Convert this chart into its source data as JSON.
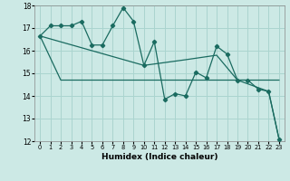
{
  "xlabel": "Humidex (Indice chaleur)",
  "background_color": "#cce9e5",
  "grid_color": "#aad4cf",
  "line_color": "#1a6b60",
  "ylim": [
    12,
    18
  ],
  "xlim": [
    -0.5,
    23.5
  ],
  "yticks": [
    12,
    13,
    14,
    15,
    16,
    17,
    18
  ],
  "xticks": [
    0,
    1,
    2,
    3,
    4,
    5,
    6,
    7,
    8,
    9,
    10,
    11,
    12,
    13,
    14,
    15,
    16,
    17,
    18,
    19,
    20,
    21,
    22,
    23
  ],
  "line1_x": [
    0,
    1,
    2,
    3,
    4,
    5,
    6,
    7,
    8,
    9,
    10,
    11,
    12,
    13,
    14,
    15,
    16,
    17,
    18,
    19,
    20,
    21,
    22,
    23
  ],
  "line1_y": [
    16.65,
    17.1,
    17.1,
    17.1,
    17.3,
    16.25,
    16.25,
    17.1,
    17.9,
    17.3,
    15.35,
    16.4,
    13.85,
    14.1,
    14.0,
    15.05,
    14.8,
    16.2,
    15.85,
    14.7,
    14.7,
    14.3,
    14.2,
    12.1
  ],
  "line2_x": [
    0,
    2,
    3,
    19,
    20,
    23
  ],
  "line2_y": [
    16.65,
    14.7,
    14.7,
    14.7,
    14.7,
    14.7
  ],
  "line3_x": [
    0,
    10,
    14,
    17,
    19,
    22,
    23
  ],
  "line3_y": [
    16.65,
    15.35,
    15.6,
    15.8,
    14.7,
    14.2,
    12.1
  ]
}
